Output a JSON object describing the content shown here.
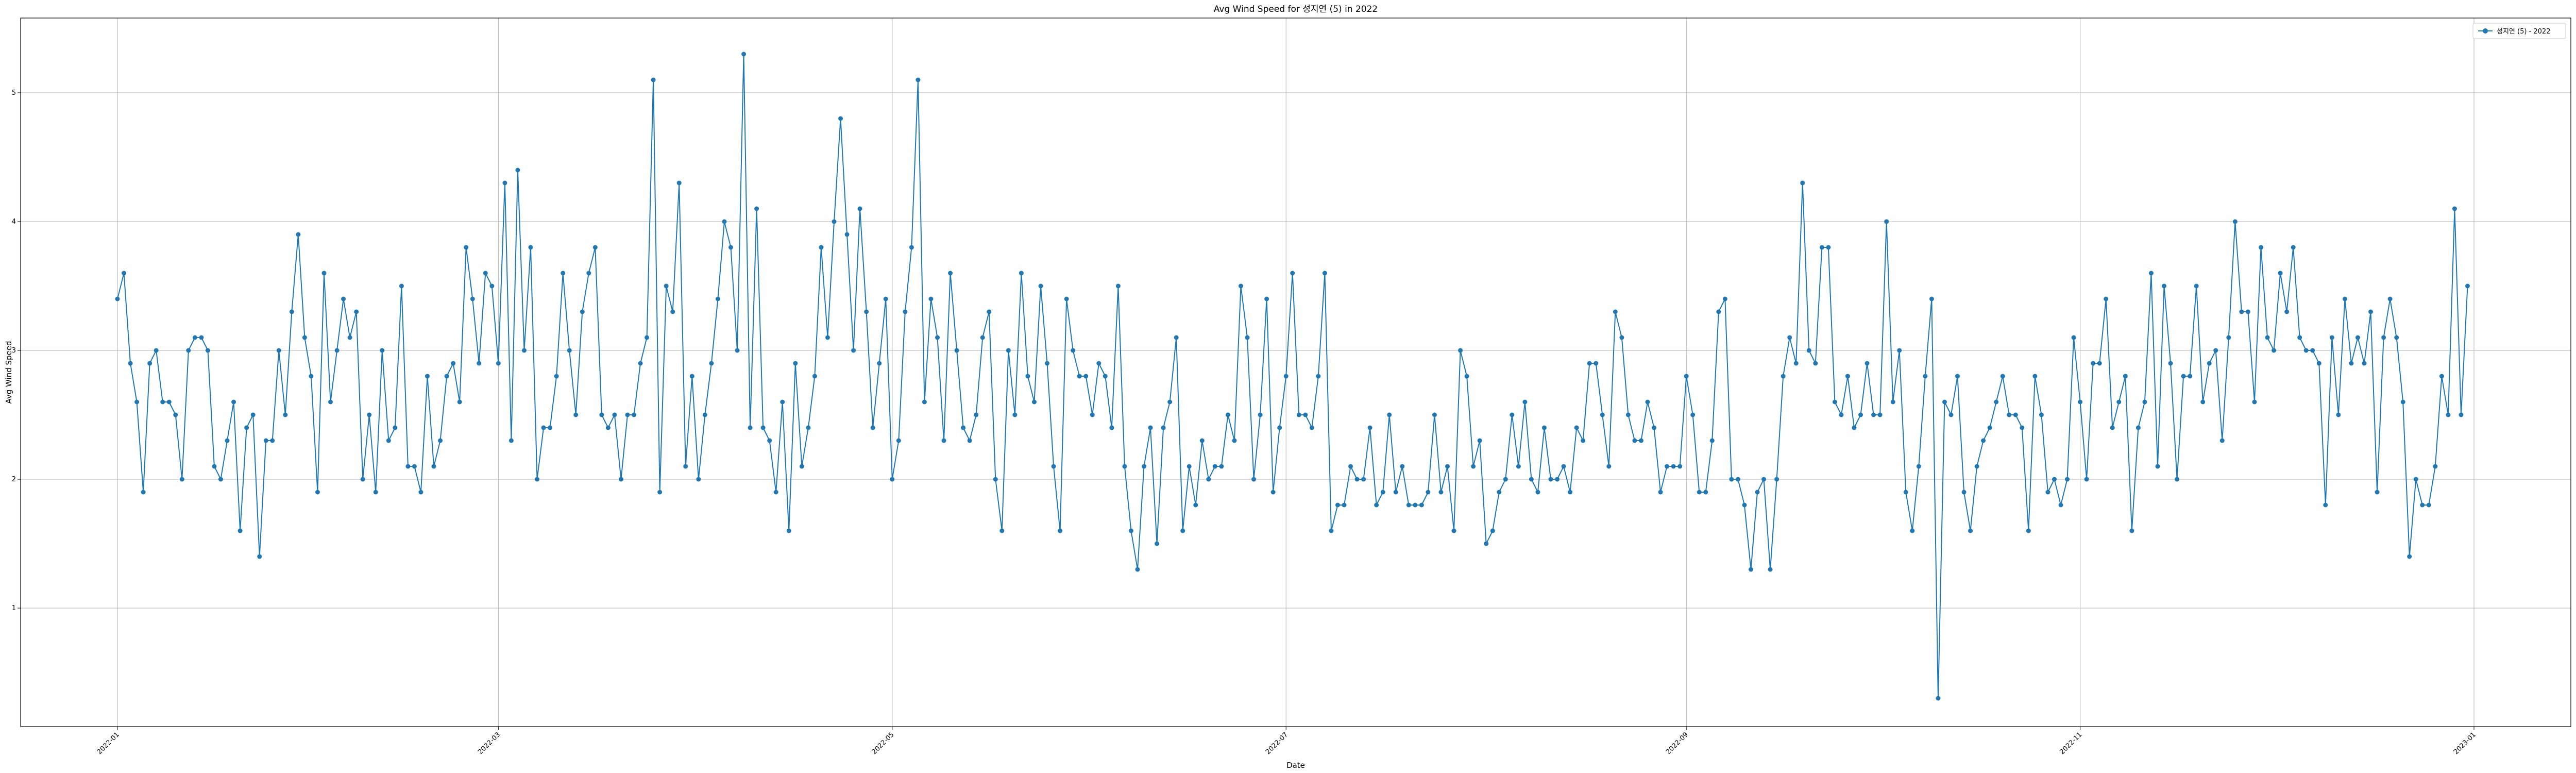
{
  "chart_data": {
    "type": "line",
    "title": "Avg Wind Speed for 성지연 (5) in 2022",
    "xlabel": "Date",
    "ylabel": "Avg Wind Speed",
    "xlim": [
      "2021-12-17",
      "2023-01-16"
    ],
    "ylim": [
      0.08,
      5.58
    ],
    "grid": true,
    "legend_placement": "top-right",
    "x_ticks": [
      "2022-01",
      "2022-03",
      "2022-05",
      "2022-07",
      "2022-09",
      "2022-11",
      "2023-01"
    ],
    "y_ticks": [
      1,
      2,
      3,
      4,
      5
    ],
    "color": "#1f77b4",
    "series": [
      {
        "name": "성지연 (5) - 2022",
        "x_start": "2022-01-01",
        "x_end": "2022-12-31",
        "values": [
          3.4,
          3.6,
          2.9,
          2.6,
          1.9,
          2.9,
          3.0,
          2.6,
          2.6,
          2.5,
          2.0,
          3.0,
          3.1,
          3.1,
          3.0,
          2.1,
          2.0,
          2.3,
          2.6,
          1.6,
          2.4,
          2.5,
          1.4,
          2.3,
          2.3,
          3.0,
          2.5,
          3.3,
          3.9,
          3.1,
          2.8,
          1.9,
          3.6,
          2.6,
          3.0,
          3.4,
          3.1,
          3.3,
          2.0,
          2.5,
          1.9,
          3.0,
          2.3,
          2.4,
          3.5,
          2.1,
          2.1,
          1.9,
          2.8,
          2.1,
          2.3,
          2.8,
          2.9,
          2.6,
          3.8,
          3.4,
          2.9,
          3.6,
          3.5,
          2.9,
          4.3,
          2.3,
          4.4,
          3.0,
          3.8,
          2.0,
          2.4,
          2.4,
          2.8,
          3.6,
          3.0,
          2.5,
          3.3,
          3.6,
          3.8,
          2.5,
          2.4,
          2.5,
          2.0,
          2.5,
          2.5,
          2.9,
          3.1,
          5.1,
          1.9,
          3.5,
          3.3,
          4.3,
          2.1,
          2.8,
          2.0,
          2.5,
          2.9,
          3.4,
          4.0,
          3.8,
          3.0,
          5.3,
          2.4,
          4.1,
          2.4,
          2.3,
          1.9,
          2.6,
          1.6,
          2.9,
          2.1,
          2.4,
          2.8,
          3.8,
          3.1,
          4.0,
          4.8,
          3.9,
          3.0,
          4.1,
          3.3,
          2.4,
          2.9,
          3.4,
          2.0,
          2.3,
          3.3,
          3.8,
          5.1,
          2.6,
          3.4,
          3.1,
          2.3,
          3.6,
          3.0,
          2.4,
          2.3,
          2.5,
          3.1,
          3.3,
          2.0,
          1.6,
          3.0,
          2.5,
          3.6,
          2.8,
          2.6,
          3.5,
          2.9,
          2.1,
          1.6,
          3.4,
          3.0,
          2.8,
          2.8,
          2.5,
          2.9,
          2.8,
          2.4,
          3.5,
          2.1,
          1.6,
          1.3,
          2.1,
          2.4,
          1.5,
          2.4,
          2.6,
          3.1,
          1.6,
          2.1,
          1.8,
          2.3,
          2.0,
          2.1,
          2.1,
          2.5,
          2.3,
          3.5,
          3.1,
          2.0,
          2.5,
          3.4,
          1.9,
          2.4,
          2.8,
          3.6,
          2.5,
          2.5,
          2.4,
          2.8,
          3.6,
          1.6,
          1.8,
          1.8,
          2.1,
          2.0,
          2.0,
          2.4,
          1.8,
          1.9,
          2.5,
          1.9,
          2.1,
          1.8,
          1.8,
          1.8,
          1.9,
          2.5,
          1.9,
          2.1,
          1.6,
          3.0,
          2.8,
          2.1,
          2.3,
          1.5,
          1.6,
          1.9,
          2.0,
          2.5,
          2.1,
          2.6,
          2.0,
          1.9,
          2.4,
          2.0,
          2.0,
          2.1,
          1.9,
          2.4,
          2.3,
          2.9,
          2.9,
          2.5,
          2.1,
          3.3,
          3.1,
          2.5,
          2.3,
          2.3,
          2.6,
          2.4,
          1.9,
          2.1,
          2.1,
          2.1,
          2.8,
          2.5,
          1.9,
          1.9,
          2.3,
          3.3,
          3.4,
          2.0,
          2.0,
          1.8,
          1.3,
          1.9,
          2.0,
          1.3,
          2.0,
          2.8,
          3.1,
          2.9,
          4.3,
          3.0,
          2.9,
          3.8,
          3.8,
          2.6,
          2.5,
          2.8,
          2.4,
          2.5,
          2.9,
          2.5,
          2.5,
          4.0,
          2.6,
          3.0,
          1.9,
          1.6,
          2.1,
          2.8,
          3.4,
          0.3,
          2.6,
          2.5,
          2.8,
          1.9,
          1.6,
          2.1,
          2.3,
          2.4,
          2.6,
          2.8,
          2.5,
          2.5,
          2.4,
          1.6,
          2.8,
          2.5,
          1.9,
          2.0,
          1.8,
          2.0,
          3.1,
          2.6,
          2.0,
          2.9,
          2.9,
          3.4,
          2.4,
          2.6,
          2.8,
          1.6,
          2.4,
          2.6,
          3.6,
          2.1,
          3.5,
          2.9,
          2.0,
          2.8,
          2.8,
          3.5,
          2.6,
          2.9,
          3.0,
          2.3,
          3.1,
          4.0,
          3.3,
          3.3,
          2.6,
          3.8,
          3.1,
          3.0,
          3.6,
          3.3,
          3.8,
          3.1,
          3.0,
          3.0,
          2.9,
          1.8,
          3.1,
          2.5,
          3.4,
          2.9,
          3.1,
          2.9,
          3.3,
          1.9,
          3.1,
          3.4,
          3.1,
          2.6,
          1.4,
          2.0,
          1.8,
          1.8,
          2.1,
          2.8,
          2.5,
          4.1,
          2.5,
          3.5
        ]
      }
    ]
  }
}
